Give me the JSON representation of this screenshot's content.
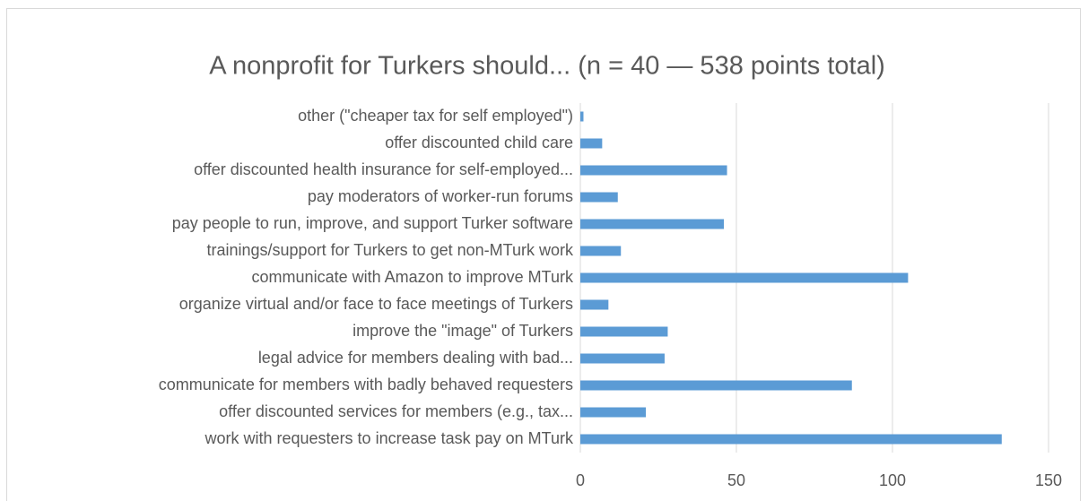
{
  "chart_data": {
    "type": "barh",
    "title": "A nonprofit for Turkers should... (n = 40 — 538 points total)",
    "categories": [
      "other (\"cheaper tax for self employed\")",
      "offer discounted child care",
      "offer discounted health insurance for self-employed...",
      "pay moderators of worker-run forums",
      "pay people to run, improve, and support Turker software",
      "trainings/support for Turkers to get non-MTurk work",
      "communicate with Amazon to improve MTurk",
      "organize virtual and/or face to face meetings of Turkers",
      "improve the \"image\" of Turkers",
      "legal advice for members dealing with bad...",
      "communicate for members with badly behaved requesters",
      "offer discounted services for members (e.g., tax...",
      "work with requesters to increase task pay on MTurk"
    ],
    "values": [
      1,
      7,
      47,
      12,
      46,
      13,
      105,
      9,
      28,
      27,
      87,
      21,
      135
    ],
    "color": "#5b9bd5",
    "xlim": [
      0,
      150
    ],
    "xticks": [
      0,
      50,
      100,
      150
    ],
    "grid": true
  }
}
